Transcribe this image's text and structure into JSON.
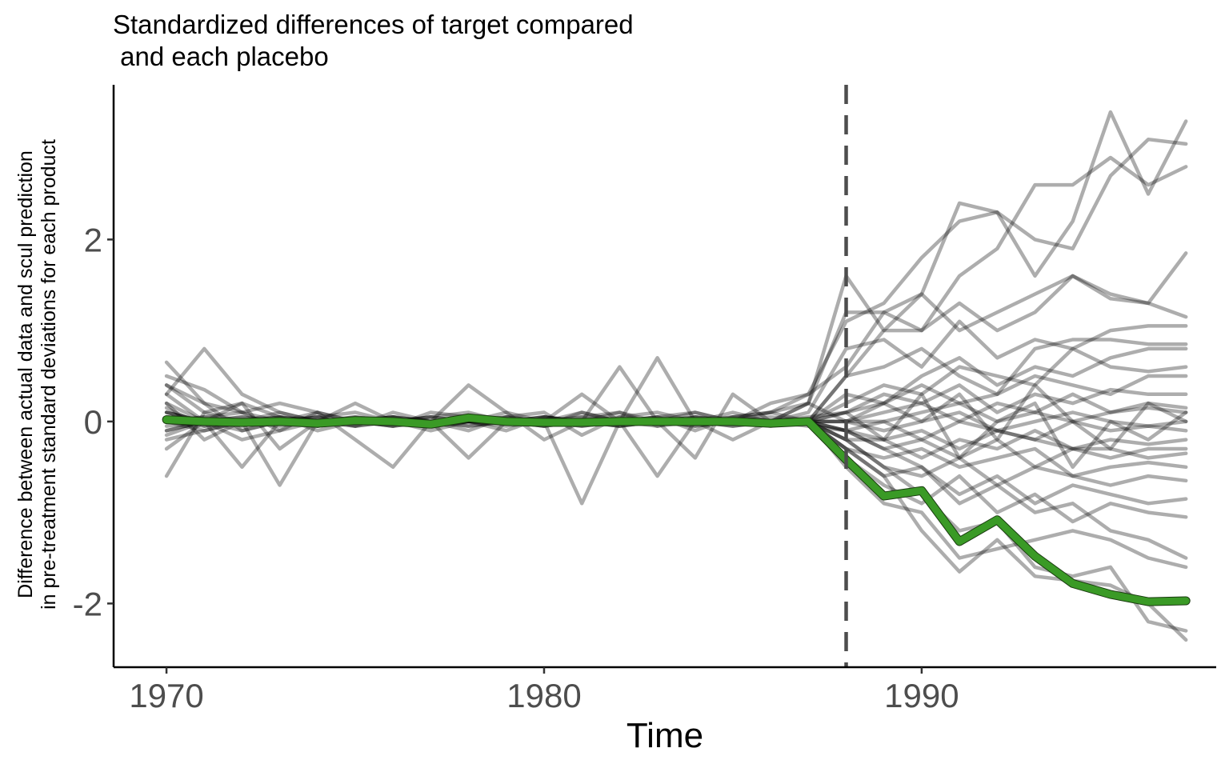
{
  "chart_data": {
    "type": "line",
    "title_lines": [
      "Standardized differences of target compared",
      " and each placebo"
    ],
    "xlabel": "Time",
    "ylabel_lines": [
      "Difference between actual data and scul prediction",
      "in pre-treatment standard deviations for each product"
    ],
    "xlim": [
      1968.6,
      1997.8
    ],
    "ylim": [
      -2.7,
      3.7
    ],
    "x_ticks": [
      1970,
      1980,
      1990
    ],
    "x_tick_labels": [
      "1970",
      "1980",
      "1990"
    ],
    "y_ticks": [
      -2,
      0,
      2
    ],
    "y_tick_labels": [
      "-2",
      "0",
      "2"
    ],
    "treatment_x": 1988,
    "grid": false,
    "legend": "none",
    "colors": {
      "target": "#3a9a26",
      "placebo": "#000000",
      "treatment_line": "#4d4d4d",
      "tick_label": "#4d4d4d"
    },
    "x": [
      1970,
      1971,
      1972,
      1973,
      1974,
      1975,
      1976,
      1977,
      1978,
      1979,
      1980,
      1981,
      1982,
      1983,
      1984,
      1985,
      1986,
      1987,
      1988,
      1989,
      1990,
      1991,
      1992,
      1993,
      1994,
      1995,
      1996,
      1997
    ],
    "target": [
      0.02,
      0.0,
      -0.01,
      0.0,
      -0.02,
      0.01,
      0.0,
      -0.03,
      0.04,
      0.0,
      -0.01,
      -0.01,
      0.0,
      0.0,
      0.0,
      0.0,
      -0.02,
      0.0,
      -0.42,
      -0.82,
      -0.76,
      -1.32,
      -1.08,
      -1.48,
      -1.78,
      -1.9,
      -1.98,
      -1.97
    ],
    "placebos": [
      [
        0.65,
        0.2,
        -0.1,
        0.0,
        0.05,
        -0.05,
        0.1,
        0.0,
        -0.1,
        0.05,
        0.1,
        -0.15,
        0.05,
        0.1,
        0.0,
        0.05,
        0.1,
        0.2,
        1.6,
        1.0,
        1.4,
        2.4,
        2.3,
        1.6,
        2.2,
        3.4,
        2.5,
        3.3
      ],
      [
        -0.6,
        0.1,
        0.2,
        0.05,
        -0.1,
        0.0,
        0.05,
        -0.05,
        0.0,
        -0.1,
        0.05,
        0.0,
        0.1,
        -0.05,
        0.05,
        0.0,
        0.2,
        0.3,
        1.1,
        1.3,
        1.8,
        2.2,
        2.3,
        2.0,
        1.9,
        2.7,
        3.1,
        3.05
      ],
      [
        0.5,
        0.35,
        0.1,
        -0.1,
        0.1,
        0.0,
        -0.05,
        0.1,
        0.05,
        0.0,
        -0.05,
        0.1,
        0.0,
        0.05,
        -0.1,
        0.05,
        0.1,
        0.0,
        0.5,
        1.0,
        1.0,
        1.6,
        1.9,
        2.6,
        2.6,
        2.9,
        2.6,
        2.8
      ],
      [
        0.3,
        0.8,
        0.3,
        0.1,
        0.0,
        -0.05,
        0.0,
        0.05,
        0.1,
        0.0,
        0.05,
        0.0,
        -0.05,
        0.0,
        0.1,
        0.0,
        0.1,
        0.3,
        0.6,
        1.2,
        1.4,
        1.0,
        1.2,
        1.4,
        1.6,
        1.4,
        1.3,
        1.85
      ],
      [
        0.4,
        0.1,
        0.0,
        0.0,
        0.05,
        0.1,
        0.0,
        0.0,
        0.05,
        0.0,
        0.0,
        0.05,
        0.1,
        0.0,
        0.0,
        0.1,
        0.0,
        0.2,
        1.2,
        1.2,
        1.0,
        1.3,
        1.0,
        1.2,
        1.6,
        1.35,
        1.3,
        1.15
      ],
      [
        0.2,
        0.0,
        -0.1,
        0.0,
        0.1,
        0.0,
        0.0,
        0.0,
        0.0,
        0.1,
        0.0,
        0.0,
        0.0,
        0.05,
        0.1,
        0.0,
        0.0,
        0.1,
        0.8,
        0.9,
        0.6,
        1.1,
        0.7,
        0.9,
        0.8,
        1.0,
        1.05,
        1.05
      ],
      [
        0.1,
        0.0,
        0.0,
        0.1,
        0.0,
        0.0,
        0.05,
        0.0,
        0.0,
        0.0,
        0.05,
        0.0,
        0.0,
        0.0,
        0.0,
        0.0,
        0.0,
        0.0,
        0.5,
        0.6,
        0.8,
        0.5,
        0.3,
        0.8,
        0.9,
        0.9,
        0.85,
        0.85
      ],
      [
        0.0,
        0.05,
        0.1,
        0.0,
        0.0,
        0.0,
        0.0,
        0.05,
        0.0,
        0.0,
        0.0,
        0.0,
        0.0,
        0.0,
        0.0,
        0.0,
        0.0,
        0.0,
        0.3,
        0.2,
        0.5,
        0.7,
        0.4,
        0.6,
        0.5,
        0.7,
        0.8,
        0.8
      ],
      [
        0.15,
        -0.05,
        0.0,
        0.05,
        0.0,
        0.05,
        0.0,
        0.0,
        0.0,
        0.05,
        0.0,
        0.1,
        0.0,
        0.0,
        0.05,
        0.0,
        0.05,
        0.0,
        0.2,
        0.4,
        0.3,
        0.6,
        0.5,
        0.4,
        0.8,
        0.6,
        0.55,
        0.6
      ],
      [
        -0.1,
        0.0,
        0.05,
        0.0,
        0.0,
        0.0,
        0.05,
        0.0,
        0.0,
        0.0,
        0.05,
        0.0,
        0.0,
        0.05,
        0.0,
        0.0,
        0.0,
        0.0,
        0.1,
        0.2,
        0.4,
        0.2,
        0.3,
        0.5,
        0.4,
        0.3,
        0.5,
        0.5
      ],
      [
        0.05,
        0.0,
        0.0,
        0.0,
        0.05,
        0.0,
        0.0,
        0.0,
        0.05,
        0.0,
        0.0,
        0.0,
        0.05,
        0.0,
        0.0,
        0.0,
        0.0,
        0.05,
        0.1,
        0.3,
        0.2,
        0.4,
        0.1,
        0.3,
        0.2,
        0.35,
        0.3,
        0.3
      ],
      [
        0.1,
        0.0,
        0.0,
        0.05,
        0.0,
        0.0,
        0.0,
        0.05,
        0.0,
        0.0,
        0.0,
        0.05,
        0.0,
        0.0,
        0.05,
        0.0,
        0.0,
        0.0,
        0.0,
        0.1,
        0.2,
        0.0,
        0.2,
        0.1,
        0.3,
        0.1,
        0.2,
        0.15
      ],
      [
        0.0,
        0.0,
        0.05,
        0.0,
        0.0,
        0.05,
        0.0,
        0.0,
        0.0,
        0.05,
        0.0,
        0.0,
        0.0,
        0.0,
        0.0,
        0.05,
        0.0,
        0.0,
        0.0,
        0.0,
        0.1,
        0.2,
        0.0,
        0.1,
        0.0,
        0.1,
        0.15,
        0.1
      ],
      [
        -0.2,
        -0.1,
        0.0,
        0.0,
        -0.05,
        0.0,
        0.0,
        0.0,
        -0.05,
        0.0,
        0.0,
        -0.05,
        0.0,
        0.0,
        0.0,
        -0.05,
        0.0,
        0.0,
        0.0,
        -0.1,
        0.0,
        0.1,
        -0.1,
        0.0,
        0.1,
        0.0,
        -0.05,
        0.0
      ],
      [
        0.0,
        0.05,
        0.0,
        0.0,
        0.0,
        0.0,
        -0.05,
        0.0,
        0.0,
        0.0,
        -0.05,
        0.0,
        0.0,
        0.0,
        -0.05,
        0.0,
        0.0,
        0.0,
        -0.1,
        0.0,
        -0.2,
        0.0,
        -0.1,
        -0.2,
        0.0,
        -0.1,
        -0.05,
        -0.1
      ],
      [
        0.1,
        0.0,
        0.0,
        0.0,
        -0.05,
        0.0,
        0.0,
        0.0,
        0.0,
        -0.05,
        0.0,
        0.0,
        0.0,
        0.0,
        0.0,
        0.0,
        0.0,
        -0.05,
        -0.1,
        -0.2,
        -0.1,
        -0.3,
        -0.1,
        -0.2,
        -0.3,
        -0.2,
        -0.25,
        -0.2
      ],
      [
        0.0,
        -0.05,
        0.0,
        0.0,
        0.0,
        0.0,
        0.0,
        -0.05,
        0.0,
        0.0,
        0.0,
        0.0,
        -0.05,
        0.0,
        0.0,
        0.0,
        0.0,
        0.0,
        -0.2,
        -0.2,
        -0.4,
        -0.2,
        -0.3,
        -0.1,
        -0.3,
        -0.4,
        -0.3,
        -0.3
      ],
      [
        -0.1,
        0.0,
        0.0,
        -0.05,
        0.0,
        0.0,
        0.0,
        0.0,
        0.0,
        0.0,
        -0.05,
        0.0,
        0.0,
        0.0,
        0.0,
        0.0,
        -0.05,
        0.0,
        -0.1,
        -0.3,
        -0.2,
        -0.4,
        -0.2,
        -0.5,
        -0.3,
        -0.3,
        -0.4,
        -0.35
      ],
      [
        0.05,
        0.0,
        -0.05,
        0.0,
        0.0,
        0.0,
        -0.05,
        0.0,
        0.0,
        0.0,
        0.0,
        -0.05,
        0.0,
        0.0,
        0.0,
        0.0,
        0.0,
        0.0,
        -0.3,
        -0.4,
        -0.3,
        -0.5,
        -0.4,
        -0.3,
        -0.6,
        -0.5,
        -0.45,
        -0.5
      ],
      [
        0.0,
        0.0,
        0.0,
        0.0,
        -0.05,
        0.0,
        0.0,
        0.0,
        -0.05,
        0.0,
        0.0,
        0.0,
        0.0,
        -0.05,
        0.0,
        0.0,
        0.0,
        0.0,
        -0.2,
        -0.5,
        -0.6,
        -0.4,
        -0.7,
        -0.5,
        -0.6,
        -0.7,
        -0.6,
        -0.65
      ],
      [
        -0.15,
        0.0,
        0.0,
        0.0,
        0.0,
        -0.05,
        0.0,
        0.0,
        0.0,
        0.0,
        0.0,
        0.0,
        -0.05,
        0.0,
        0.0,
        -0.05,
        0.0,
        0.0,
        -0.3,
        -0.6,
        -0.5,
        -0.8,
        -0.6,
        -0.9,
        -0.7,
        -0.8,
        -0.9,
        -0.85
      ],
      [
        0.0,
        -0.1,
        0.0,
        0.05,
        0.0,
        0.0,
        0.0,
        -0.05,
        0.0,
        0.0,
        0.0,
        0.0,
        0.0,
        0.0,
        -0.05,
        0.0,
        0.0,
        0.0,
        -0.4,
        -0.7,
        -0.9,
        -0.6,
        -1.0,
        -0.8,
        -1.1,
        -0.9,
        -1.0,
        -1.05
      ],
      [
        0.2,
        -0.2,
        0.0,
        0.0,
        0.0,
        0.0,
        0.05,
        0.0,
        0.0,
        0.0,
        0.0,
        0.0,
        0.0,
        0.0,
        0.0,
        0.0,
        0.0,
        0.0,
        -0.5,
        -0.9,
        -1.0,
        -1.5,
        -1.4,
        -1.3,
        -1.2,
        -1.3,
        -1.5,
        -1.6
      ],
      [
        0.0,
        0.0,
        -0.2,
        -0.1,
        0.0,
        0.0,
        0.0,
        0.0,
        0.0,
        0.0,
        0.0,
        0.0,
        0.0,
        0.0,
        0.0,
        0.0,
        0.0,
        0.0,
        -0.3,
        -0.6,
        -1.2,
        -1.65,
        -1.3,
        -1.7,
        -1.75,
        -1.8,
        -2.0,
        -2.4
      ],
      [
        0.3,
        0.0,
        -0.5,
        0.0,
        0.0,
        0.0,
        0.0,
        -0.1,
        0.0,
        0.0,
        0.0,
        0.0,
        0.0,
        -0.6,
        0.0,
        0.0,
        0.0,
        0.0,
        -0.2,
        -0.5,
        -0.8,
        -1.2,
        -1.1,
        -1.6,
        -1.7,
        -1.6,
        -2.2,
        -2.3
      ],
      [
        -0.05,
        0.0,
        0.0,
        -0.7,
        0.0,
        0.0,
        0.0,
        0.0,
        0.0,
        0.0,
        0.0,
        -0.9,
        0.0,
        0.0,
        0.0,
        0.0,
        0.0,
        0.0,
        -0.1,
        -0.3,
        -0.5,
        -0.9,
        -0.7,
        -1.0,
        -0.9,
        -1.2,
        -1.3,
        -1.5
      ],
      [
        0.4,
        0.2,
        0.1,
        0.2,
        0.1,
        -0.2,
        -0.5,
        0.0,
        0.4,
        0.1,
        -0.2,
        0.0,
        0.6,
        0.0,
        -0.4,
        0.3,
        0.0,
        0.2,
        0.0,
        0.2,
        0.0,
        0.3,
        -0.2,
        0.4,
        0.0,
        -0.3,
        0.2,
        0.0
      ],
      [
        -0.3,
        0.0,
        0.2,
        -0.3,
        0.0,
        0.2,
        0.0,
        0.0,
        -0.4,
        0.0,
        0.0,
        0.3,
        0.0,
        0.7,
        0.0,
        -0.2,
        0.0,
        0.0,
        0.1,
        -0.2,
        0.3,
        -0.4,
        0.0,
        0.2,
        -0.5,
        0.0,
        -0.2,
        0.1
      ]
    ]
  }
}
